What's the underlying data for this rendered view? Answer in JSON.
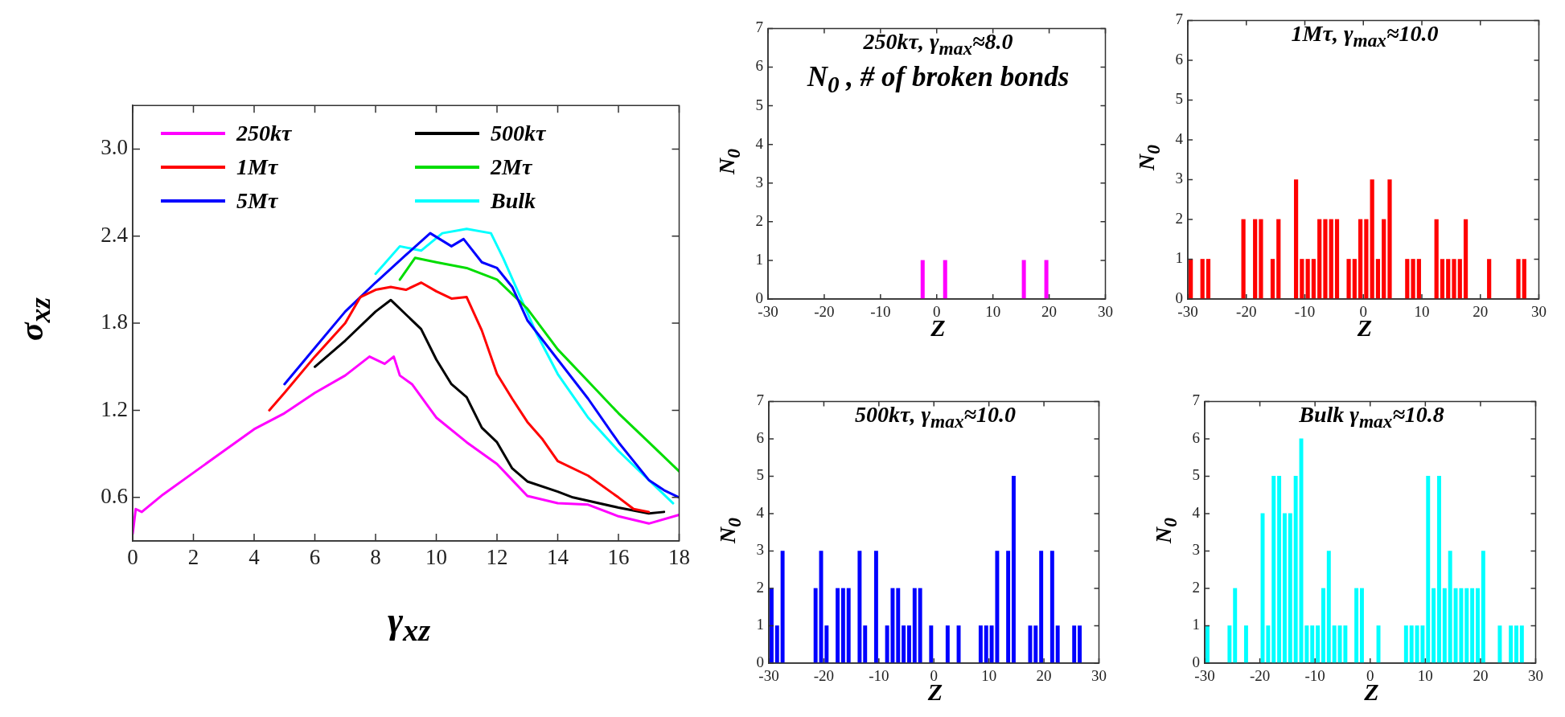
{
  "chart_data": [
    {
      "type": "line",
      "xlabel": "γ$_{xz}$",
      "ylabel": "σ$_{xz}$",
      "legend": "top left",
      "marker": "none",
      "line_style": "solid",
      "xlim": [
        0,
        18
      ],
      "xticks": [
        0,
        2,
        4,
        6,
        8,
        10,
        12,
        14,
        16,
        18
      ],
      "ylim": [
        0.3,
        3.3
      ],
      "yticks": [
        0.6,
        1.2,
        1.8,
        2.4,
        {
          "value": 3,
          "label": "3.0"
        }
      ],
      "series": [
        {
          "name": "250kτ",
          "color": "#ff00ff",
          "x": [
            0,
            0.1,
            0.3,
            1,
            2,
            3,
            4,
            5,
            6,
            7,
            7.8,
            8.3,
            8.6,
            8.8,
            9.2,
            10,
            11,
            12,
            12.5,
            13,
            14,
            15,
            16,
            17,
            18
          ],
          "values": [
            0.35,
            0.52,
            0.5,
            0.62,
            0.77,
            0.92,
            1.07,
            1.18,
            1.32,
            1.44,
            1.57,
            1.52,
            1.57,
            1.44,
            1.38,
            1.15,
            0.98,
            0.83,
            0.72,
            0.61,
            0.56,
            0.55,
            0.47,
            0.42,
            0.48
          ]
        },
        {
          "name": "1Mτ",
          "color": "#ff0000",
          "x": [
            4.5,
            5,
            6,
            7,
            7.5,
            8,
            8.5,
            9,
            9.5,
            10,
            10.5,
            11,
            11.5,
            12,
            12.5,
            13,
            13.5,
            14,
            15,
            16,
            16.5,
            17
          ],
          "values": [
            1.2,
            1.32,
            1.57,
            1.8,
            1.98,
            2.03,
            2.05,
            2.03,
            2.08,
            2.02,
            1.97,
            1.98,
            1.75,
            1.45,
            1.28,
            1.12,
            1.0,
            0.85,
            0.75,
            0.6,
            0.52,
            0.5
          ]
        },
        {
          "name": "5Mτ",
          "color": "#0000ff",
          "x": [
            5,
            6,
            7,
            8,
            9,
            9.8,
            10.5,
            10.9,
            11.5,
            12,
            12.5,
            13,
            14,
            15,
            16,
            17,
            17.5,
            18
          ],
          "values": [
            1.38,
            1.63,
            1.88,
            2.08,
            2.27,
            2.42,
            2.33,
            2.38,
            2.22,
            2.18,
            2.05,
            1.82,
            1.55,
            1.28,
            0.98,
            0.72,
            0.65,
            0.6
          ]
        },
        {
          "name": "500kτ",
          "color": "#000000",
          "x": [
            6,
            7,
            8,
            8.5,
            9,
            9.5,
            10,
            10.5,
            11,
            11.5,
            12,
            12.5,
            13,
            14,
            14.5,
            16,
            17,
            17.5
          ],
          "values": [
            1.5,
            1.68,
            1.88,
            1.96,
            1.86,
            1.76,
            1.55,
            1.38,
            1.29,
            1.08,
            0.98,
            0.8,
            0.71,
            0.64,
            0.6,
            0.53,
            0.49,
            0.5
          ]
        },
        {
          "name": "2Mτ",
          "color": "#00dd00",
          "x": [
            8.8,
            9.3,
            10,
            11,
            12,
            13,
            14,
            15,
            16,
            17,
            18
          ],
          "values": [
            2.1,
            2.25,
            2.22,
            2.18,
            2.1,
            1.9,
            1.62,
            1.4,
            1.18,
            0.98,
            0.78
          ]
        },
        {
          "name": "Bulk",
          "color": "#00ffff",
          "x": [
            8,
            8.8,
            9.5,
            10.2,
            11,
            11.8,
            12.2,
            13.3,
            14,
            15,
            16,
            17.8
          ],
          "values": [
            2.14,
            2.33,
            2.3,
            2.42,
            2.45,
            2.42,
            2.25,
            1.73,
            1.45,
            1.15,
            0.92,
            0.56
          ]
        }
      ]
    },
    {
      "type": "bar",
      "title": "250kτ, γ$_{max}$≈8.0",
      "annotations": [
        "N$_{0}$ , # of broken bonds"
      ],
      "xlabel": "Z",
      "ylabel": "N$_{0}$",
      "color": "#ff00ff",
      "xlim": [
        -30,
        30
      ],
      "xticks": [
        -30,
        -20,
        -10,
        0,
        10,
        20,
        30
      ],
      "ylim": [
        0,
        7
      ],
      "yticks": [
        0,
        1,
        2,
        3,
        4,
        5,
        6,
        7
      ],
      "x": [
        -2.5,
        1.5,
        15.5,
        19.5
      ],
      "values": [
        1,
        1,
        1,
        1
      ]
    },
    {
      "type": "bar",
      "title": "1Mτ, γ$_{max}$≈10.0",
      "xlabel": "Z",
      "ylabel": "N$_{0}$",
      "color": "#ff0000",
      "xlim": [
        -30,
        30
      ],
      "xticks": [
        -30,
        -20,
        -10,
        0,
        10,
        20,
        30
      ],
      "ylim": [
        0,
        7
      ],
      "yticks": [
        0,
        1,
        2,
        3,
        4,
        5,
        6,
        7
      ],
      "x": [
        -29.5,
        -27.5,
        -26.5,
        -20.5,
        -18.5,
        -17.5,
        -15.5,
        -14.5,
        -11.5,
        -10.5,
        -9.5,
        -8.5,
        -7.5,
        -6.5,
        -5.5,
        -4.5,
        -2.5,
        -1.5,
        -0.5,
        0.5,
        1.5,
        2.5,
        3.5,
        4.5,
        7.5,
        8.5,
        9.5,
        12.5,
        13.5,
        14.5,
        15.5,
        16.5,
        17.5,
        21.5,
        26.5,
        27.5
      ],
      "values": [
        1,
        1,
        1,
        2,
        2,
        2,
        1,
        2,
        3,
        1,
        1,
        1,
        2,
        2,
        2,
        2,
        1,
        1,
        2,
        2,
        3,
        1,
        2,
        3,
        1,
        1,
        1,
        2,
        1,
        1,
        1,
        1,
        2,
        1,
        1,
        1
      ]
    },
    {
      "type": "bar",
      "title": "500kτ, γ$_{max}$≈10.0",
      "xlabel": "Z",
      "ylabel": "N$_{0}$",
      "color": "#0000ff",
      "xlim": [
        -30,
        30
      ],
      "xticks": [
        -30,
        -20,
        -10,
        0,
        10,
        20,
        30
      ],
      "ylim": [
        0,
        7
      ],
      "yticks": [
        0,
        1,
        2,
        3,
        4,
        5,
        6,
        7
      ],
      "x": [
        -29.5,
        -28.5,
        -27.5,
        -21.5,
        -20.5,
        -19.5,
        -17.5,
        -16.5,
        -15.5,
        -13.5,
        -12.5,
        -10.5,
        -8.5,
        -7.5,
        -6.5,
        -5.5,
        -4.5,
        -3.5,
        -2.5,
        -0.5,
        2.5,
        4.5,
        8.5,
        9.5,
        10.5,
        11.5,
        13.5,
        14.5,
        17.5,
        18.5,
        19.5,
        21.5,
        22.5,
        25.5,
        26.5
      ],
      "values": [
        2,
        1,
        3,
        2,
        3,
        1,
        2,
        2,
        2,
        3,
        1,
        3,
        1,
        2,
        2,
        1,
        1,
        2,
        2,
        1,
        1,
        1,
        1,
        1,
        1,
        3,
        3,
        5,
        1,
        1,
        3,
        3,
        1,
        1,
        1
      ]
    },
    {
      "type": "bar",
      "title": "Bulk γ$_{max}$≈10.8",
      "xlabel": "Z",
      "ylabel": "N$_{0}$",
      "color": "#00ffff",
      "xlim": [
        -30,
        30
      ],
      "xticks": [
        -30,
        -20,
        -10,
        0,
        10,
        20,
        30
      ],
      "ylim": [
        0,
        7
      ],
      "yticks": [
        0,
        1,
        2,
        3,
        4,
        5,
        6,
        7
      ],
      "x": [
        -29.5,
        -25.5,
        -24.5,
        -22.5,
        -19.5,
        -18.5,
        -17.5,
        -16.5,
        -15.5,
        -14.5,
        -13.5,
        -12.5,
        -11.5,
        -10.5,
        -9.5,
        -8.5,
        -7.5,
        -6.5,
        -5.5,
        -4.5,
        -2.5,
        -1.5,
        1.5,
        6.5,
        7.5,
        8.5,
        9.5,
        10.5,
        11.5,
        12.5,
        13.5,
        14.5,
        15.5,
        16.5,
        17.5,
        18.5,
        19.5,
        20.5,
        23.5,
        25.5,
        26.5,
        27.5
      ],
      "values": [
        1,
        1,
        2,
        1,
        4,
        1,
        5,
        5,
        4,
        4,
        5,
        6,
        1,
        1,
        1,
        2,
        3,
        1,
        1,
        1,
        2,
        2,
        1,
        1,
        1,
        1,
        1,
        5,
        2,
        5,
        2,
        3,
        2,
        2,
        2,
        2,
        2,
        3,
        1,
        1,
        1,
        1
      ]
    }
  ]
}
